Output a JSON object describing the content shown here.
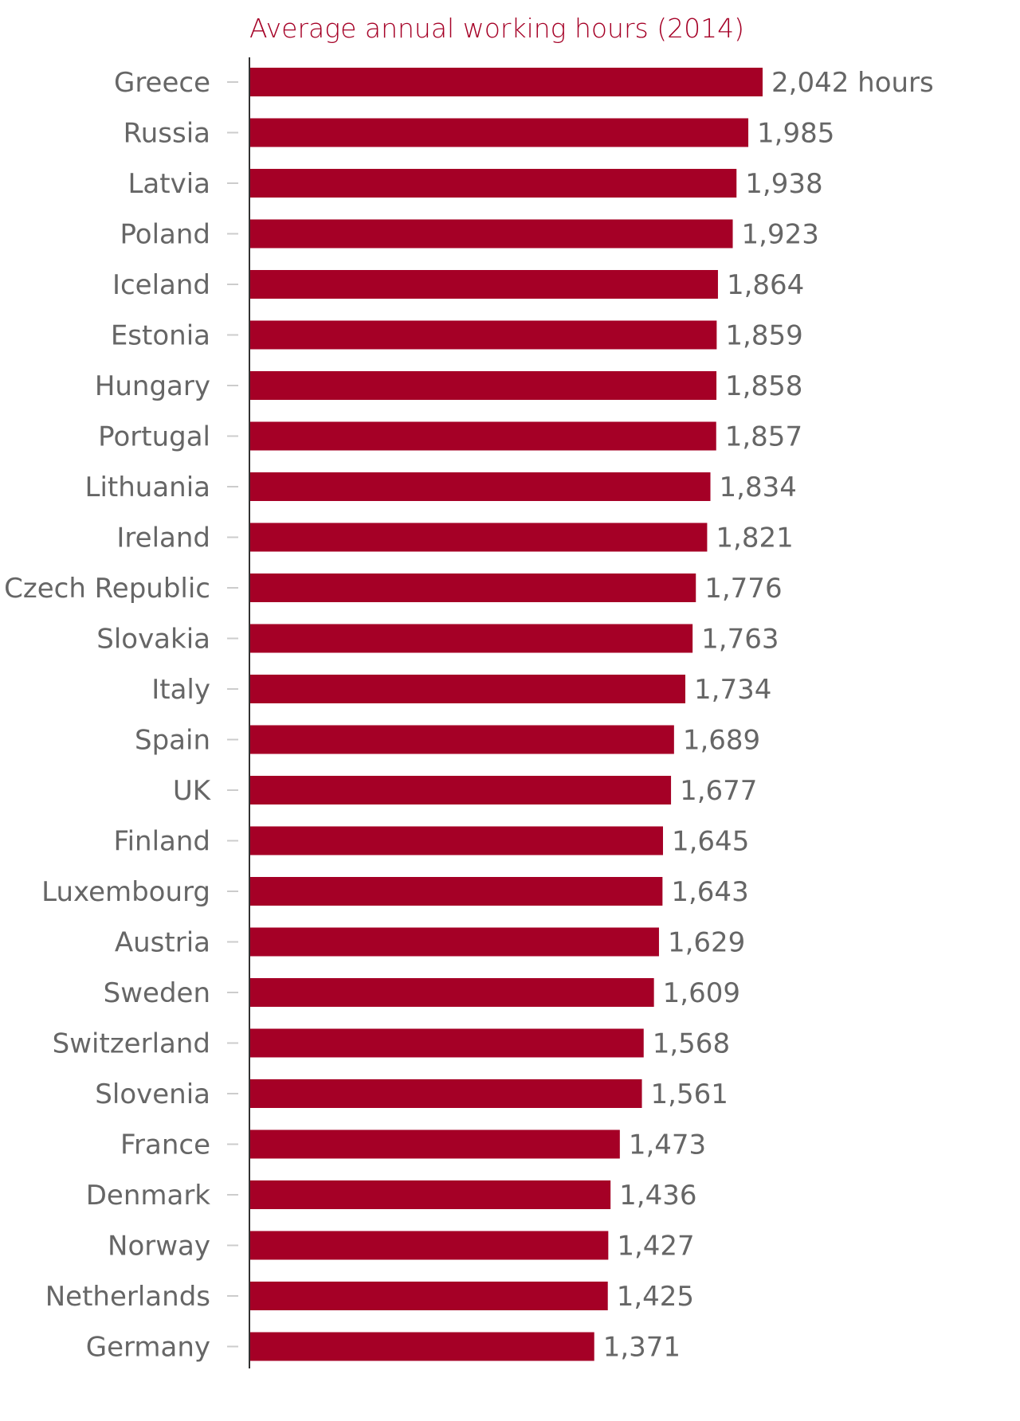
{
  "chart_data": {
    "type": "bar",
    "orientation": "horizontal",
    "title": "Average annual working hours (2014)",
    "xlabel": "",
    "ylabel": "",
    "unit_suffix_first": " hours",
    "color": "#a50026",
    "xlim": [
      0,
      2042
    ],
    "grid": false,
    "categories": [
      "Greece",
      "Russia",
      "Latvia",
      "Poland",
      "Iceland",
      "Estonia",
      "Hungary",
      "Portugal",
      "Lithuania",
      "Ireland",
      "Czech Republic",
      "Slovakia",
      "Italy",
      "Spain",
      "UK",
      "Finland",
      "Luxembourg",
      "Austria",
      "Sweden",
      "Switzerland",
      "Slovenia",
      "France",
      "Denmark",
      "Norway",
      "Netherlands",
      "Germany"
    ],
    "values": [
      2042,
      1985,
      1938,
      1923,
      1864,
      1859,
      1858,
      1857,
      1834,
      1821,
      1776,
      1763,
      1734,
      1689,
      1677,
      1645,
      1643,
      1629,
      1609,
      1568,
      1561,
      1473,
      1436,
      1427,
      1425,
      1371
    ],
    "value_labels": [
      "2,042 hours",
      "1,985",
      "1,938",
      "1,923",
      "1,864",
      "1,859",
      "1,858",
      "1,857",
      "1,834",
      "1,821",
      "1,776",
      "1,763",
      "1,734",
      "1,689",
      "1,677",
      "1,645",
      "1,643",
      "1,629",
      "1,609",
      "1,568",
      "1,561",
      "1,473",
      "1,436",
      "1,427",
      "1,425",
      "1,371"
    ]
  }
}
